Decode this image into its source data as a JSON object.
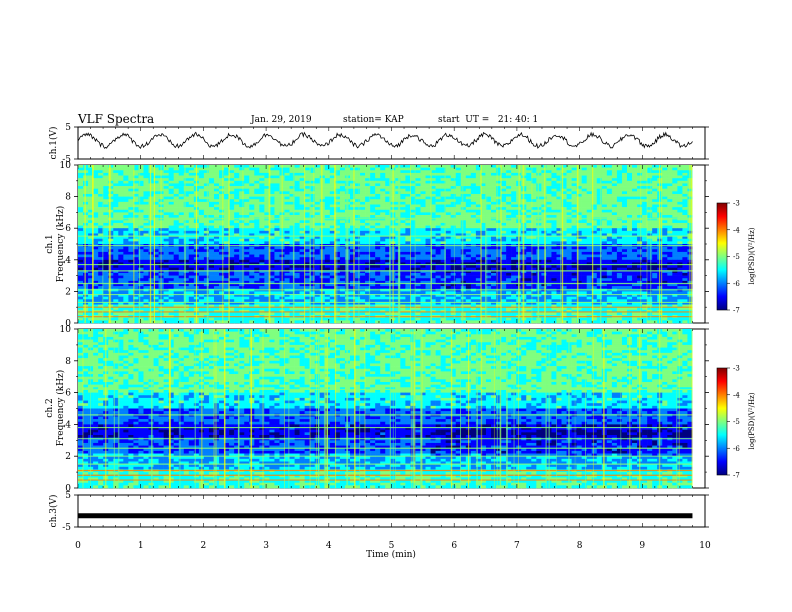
{
  "header": {
    "title": "VLF Spectra",
    "date": "Jan. 29, 2019",
    "station": "station= KAP",
    "start": "start  UT =   21: 40: 1"
  },
  "chart_data": [
    {
      "type": "line",
      "panel": "ch1-waveform",
      "ylabel": "ch.1(V)",
      "ylim": [
        -5,
        5
      ],
      "yticks": [
        5,
        -5
      ],
      "xlim": [
        0,
        10
      ],
      "x_data_end": 9.8,
      "trace_center": 0.8,
      "trace_amplitude": 1.8,
      "trace_oscillations": 17
    },
    {
      "type": "heatmap",
      "panel": "ch1-spectrogram",
      "ylabel": "ch.1\nFrequency (kHz)",
      "ylim": [
        0,
        10
      ],
      "yticks": [
        0,
        2,
        4,
        6,
        8,
        10
      ],
      "xlim": [
        0,
        10
      ],
      "x_data_end": 9.8,
      "colorbar": {
        "label": "log(PSD)(V²/Hz)",
        "range": [
          -7,
          -3
        ],
        "ticks": [
          "-3",
          "-4",
          "-5",
          "-6",
          "-7"
        ]
      }
    },
    {
      "type": "heatmap",
      "panel": "ch2-spectrogram",
      "ylabel": "ch.2\nFrequency (kHz)",
      "ylim": [
        0,
        10
      ],
      "yticks": [
        0,
        2,
        4,
        6,
        8,
        10
      ],
      "xlim": [
        0,
        10
      ],
      "x_data_end": 9.8,
      "colorbar": {
        "label": "log(PSD)(V²/Hz)",
        "range": [
          -7,
          -3
        ],
        "ticks": [
          "-3",
          "-4",
          "-5",
          "-6",
          "-7"
        ]
      }
    },
    {
      "type": "line",
      "panel": "ch3-waveform",
      "ylabel": "ch.3(V)",
      "ylim": [
        -5,
        5
      ],
      "yticks": [
        5,
        -5
      ],
      "xlim": [
        0,
        10
      ],
      "x_data_end": 9.8,
      "trace_value": -1.5,
      "xlabel": "Time (min)",
      "xticks": [
        0,
        1,
        2,
        3,
        4,
        5,
        6,
        7,
        8,
        9,
        10
      ]
    }
  ],
  "colors": {
    "colormap": [
      "#00007f",
      "#0000ff",
      "#007fff",
      "#00ffff",
      "#7fff7f",
      "#ffff00",
      "#ff7f00",
      "#ff0000",
      "#7f0000"
    ],
    "trace": "#000000"
  }
}
